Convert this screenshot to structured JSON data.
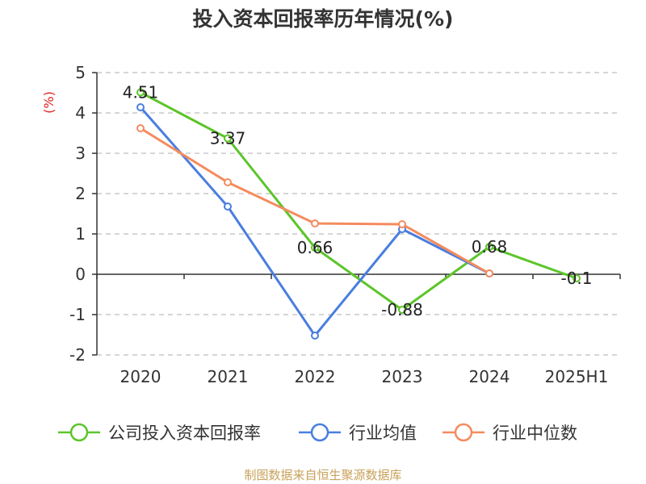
{
  "title": "投入资本回报率历年情况(%)",
  "source": "制图数据来自恒生聚源数据库",
  "chart_data": {
    "type": "line",
    "title": "投入资本回报率历年情况(%)",
    "ylabel": "(%)",
    "xlabel": "",
    "categories": [
      "2020",
      "2021",
      "2022",
      "2023",
      "2024",
      "2025H1"
    ],
    "ylim": [
      -2,
      5
    ],
    "yticks": [
      5,
      4,
      3,
      2,
      1,
      0,
      -1,
      -2
    ],
    "grid": true,
    "legend_position": "bottom",
    "series": [
      {
        "name": "公司投入资本回报率",
        "color": "#5cc52a",
        "values": [
          4.51,
          3.37,
          0.66,
          -0.88,
          0.68,
          -0.1
        ],
        "labels": [
          "4.51",
          "3.37",
          "0.66",
          "-0.88",
          "0.68",
          "-0.1"
        ]
      },
      {
        "name": "行业均值",
        "color": "#4a7ee0",
        "values": [
          4.14,
          1.68,
          -1.52,
          1.12,
          0.02,
          null
        ]
      },
      {
        "name": "行业中位数",
        "color": "#f48b5e",
        "values": [
          3.62,
          2.28,
          1.26,
          1.24,
          0.02,
          null
        ]
      }
    ]
  }
}
